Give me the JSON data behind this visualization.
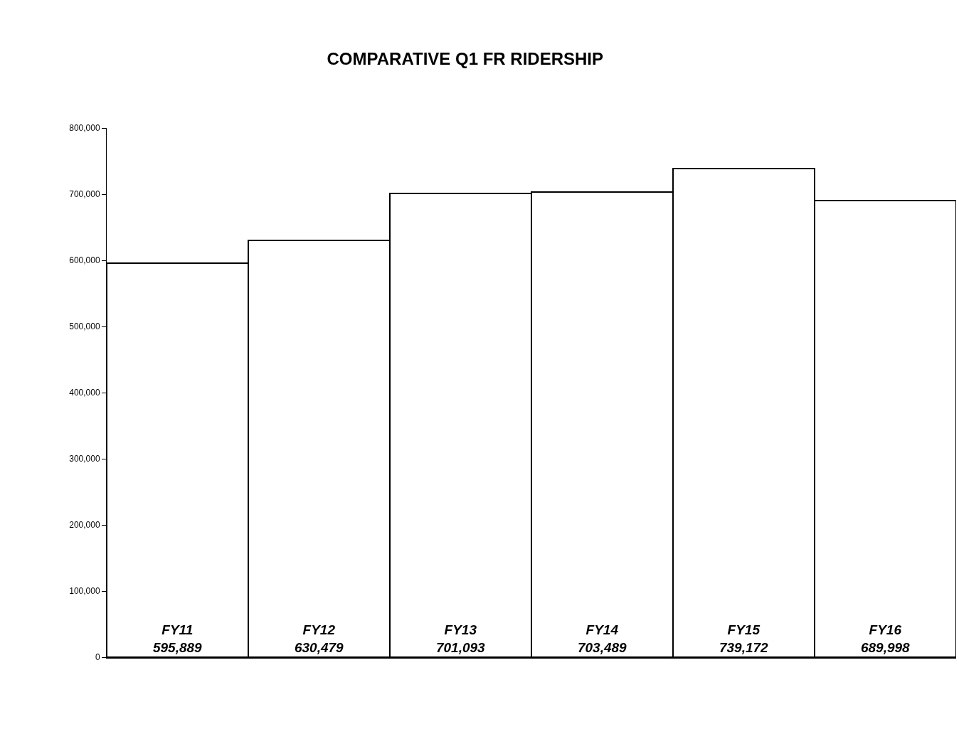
{
  "chart_data": {
    "type": "bar",
    "title": "COMPARATIVE Q1 FR RIDERSHIP",
    "categories": [
      "FY11",
      "FY12",
      "FY13",
      "FY14",
      "FY15",
      "FY16"
    ],
    "values": [
      595889,
      630479,
      701093,
      703489,
      739172,
      689998
    ],
    "color": "#ffffff",
    "value_labels": [
      "595,889",
      "630,479",
      "701,093",
      "703,489",
      "739,172",
      "689,998"
    ],
    "ylim": [
      0,
      800000
    ],
    "yticks": [
      {
        "value": 0,
        "label": "0"
      },
      {
        "value": 100000,
        "label": "100,000"
      },
      {
        "value": 200000,
        "label": "200,000"
      },
      {
        "value": 300000,
        "label": "300,000"
      },
      {
        "value": 400000,
        "label": "400,000"
      },
      {
        "value": 500000,
        "label": "500,000"
      },
      {
        "value": 600000,
        "label": "600,000"
      },
      {
        "value": 700000,
        "label": "700,000"
      },
      {
        "value": 800000,
        "label": "800,000"
      }
    ],
    "tick_labels": "y",
    "legend": false
  }
}
